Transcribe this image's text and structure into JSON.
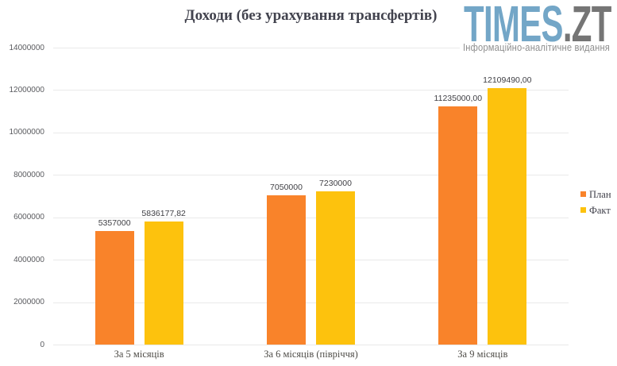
{
  "logo": {
    "brand_primary": "TIMES",
    "brand_secondary": ".ZT",
    "tagline": "Інформаційно-аналітичне видання",
    "brand_primary_color": "#73a6c7",
    "brand_secondary_color": "#757575"
  },
  "chart_data": {
    "type": "bar",
    "title": "Доходи (без урахування трансфертів)",
    "categories": [
      "За 5 місяців",
      "За 6 місяців (півріччя)",
      "За 9 місяців"
    ],
    "series": [
      {
        "name": "План",
        "color": "#f9832a",
        "values": [
          5357000,
          7050000,
          11235000
        ],
        "labels": [
          "5357000",
          "7050000",
          "11235000,00"
        ]
      },
      {
        "name": "Факт",
        "color": "#fdc20d",
        "values": [
          5836177.82,
          7230000,
          12109490
        ],
        "labels": [
          "5836177,82",
          "7230000",
          "12109490,00"
        ]
      }
    ],
    "ylim": [
      0,
      14000000
    ],
    "ytick_step": 2000000,
    "yticks": [
      "0",
      "2000000",
      "4000000",
      "6000000",
      "8000000",
      "10000000",
      "12000000",
      "14000000"
    ],
    "grid": true,
    "gridline_color": "#e9e9e9",
    "legend_position": "right"
  }
}
